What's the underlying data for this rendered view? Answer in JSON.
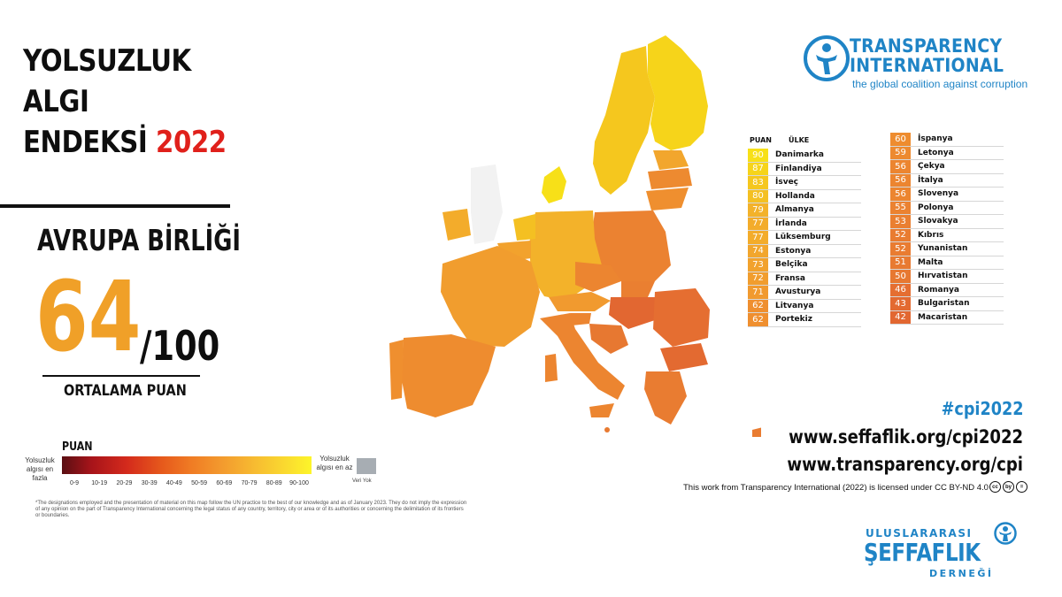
{
  "title": {
    "line1": "YOLSUZLUK",
    "line2": "ALGI",
    "line3_prefix": "ENDEKSİ",
    "year": "2022"
  },
  "region": {
    "name": "AVRUPA BİRLİĞİ",
    "score": "64",
    "out_of": "/100",
    "score_label": "ORTALAMA PUAN"
  },
  "legend": {
    "title": "PUAN",
    "most_corrupt": "Yolsuzluk algısı en fazla",
    "least_corrupt": "Yolsuzluk algısı en az",
    "no_data": "Veri Yok",
    "ranges": [
      "0-9",
      "10-19",
      "20-29",
      "30-39",
      "40-49",
      "50-59",
      "60-69",
      "70-79",
      "80-89",
      "90-100"
    ]
  },
  "disclaimer": "*The designations employed and the presentation of material on this map follow the UN practice to the best of our knowledge and as of January 2023. They do not imply the expression of any opinion on the part of Transparency International concerning the legal status of any country, territory, city or area or of its authorities or concerning the delimitation of its frontiers or boundaries.",
  "logo": {
    "line1": "TRANSPARENCY",
    "line2": "INTERNATIONAL",
    "tagline": "the global coalition against corruption"
  },
  "table": {
    "header_score": "PUAN",
    "header_country": "ÜLKE",
    "left": [
      {
        "score": "90",
        "country": "Danimarka",
        "color": "#f7e018"
      },
      {
        "score": "87",
        "country": "Finlandiya",
        "color": "#f6d41a"
      },
      {
        "score": "83",
        "country": "İsveç",
        "color": "#f5c71e"
      },
      {
        "score": "80",
        "country": "Hollanda",
        "color": "#f4c022"
      },
      {
        "score": "79",
        "country": "Almanya",
        "color": "#f3b22a"
      },
      {
        "score": "77",
        "country": "İrlanda",
        "color": "#f3ac2b"
      },
      {
        "score": "77",
        "country": "Lüksemburg",
        "color": "#f3ac2b"
      },
      {
        "score": "74",
        "country": "Estonya",
        "color": "#f2a62d"
      },
      {
        "score": "73",
        "country": "Belçika",
        "color": "#f2a22d"
      },
      {
        "score": "72",
        "country": "Fransa",
        "color": "#f19d2e"
      },
      {
        "score": "71",
        "country": "Avusturya",
        "color": "#f19a2f"
      },
      {
        "score": "62",
        "country": "Litvanya",
        "color": "#ef8f2f"
      },
      {
        "score": "62",
        "country": "Portekiz",
        "color": "#ef8f2f"
      }
    ],
    "right": [
      {
        "score": "60",
        "country": "İspanya",
        "color": "#ee8c2f"
      },
      {
        "score": "59",
        "country": "Letonya",
        "color": "#ed8a30"
      },
      {
        "score": "56",
        "country": "Çekya",
        "color": "#ec8530"
      },
      {
        "score": "56",
        "country": "İtalya",
        "color": "#ec8530"
      },
      {
        "score": "56",
        "country": "Slovenya",
        "color": "#ec8530"
      },
      {
        "score": "55",
        "country": "Polonya",
        "color": "#eb8231"
      },
      {
        "score": "53",
        "country": "Slovakya",
        "color": "#ea7f31"
      },
      {
        "score": "52",
        "country": "Kıbrıs",
        "color": "#e97c31"
      },
      {
        "score": "52",
        "country": "Yunanistan",
        "color": "#e97c31"
      },
      {
        "score": "51",
        "country": "Malta",
        "color": "#e87a31"
      },
      {
        "score": "50",
        "country": "Hırvatistan",
        "color": "#e77831"
      },
      {
        "score": "46",
        "country": "Romanya",
        "color": "#e56e31"
      },
      {
        "score": "43",
        "country": "Bulgaristan",
        "color": "#e36a31"
      },
      {
        "score": "42",
        "country": "Macaristan",
        "color": "#e26731"
      }
    ]
  },
  "links": {
    "hashtag": "#cpi2022",
    "url1": "www.seffaflik.org/cpi2022",
    "url2": "www.transparency.org/cpi"
  },
  "license": "This work from Transparency International (2022) is licensed under CC BY-ND 4.0",
  "cc_icons": [
    "cc",
    "by",
    "="
  ],
  "org": {
    "top": "ULUSLARARASI",
    "main": "ŞEFFAFLIK",
    "bottom": "DERNEĞİ"
  },
  "colors": {
    "accent_blue": "#1f84c6",
    "year_red": "#e0201b",
    "score_orange": "#f0a028"
  }
}
